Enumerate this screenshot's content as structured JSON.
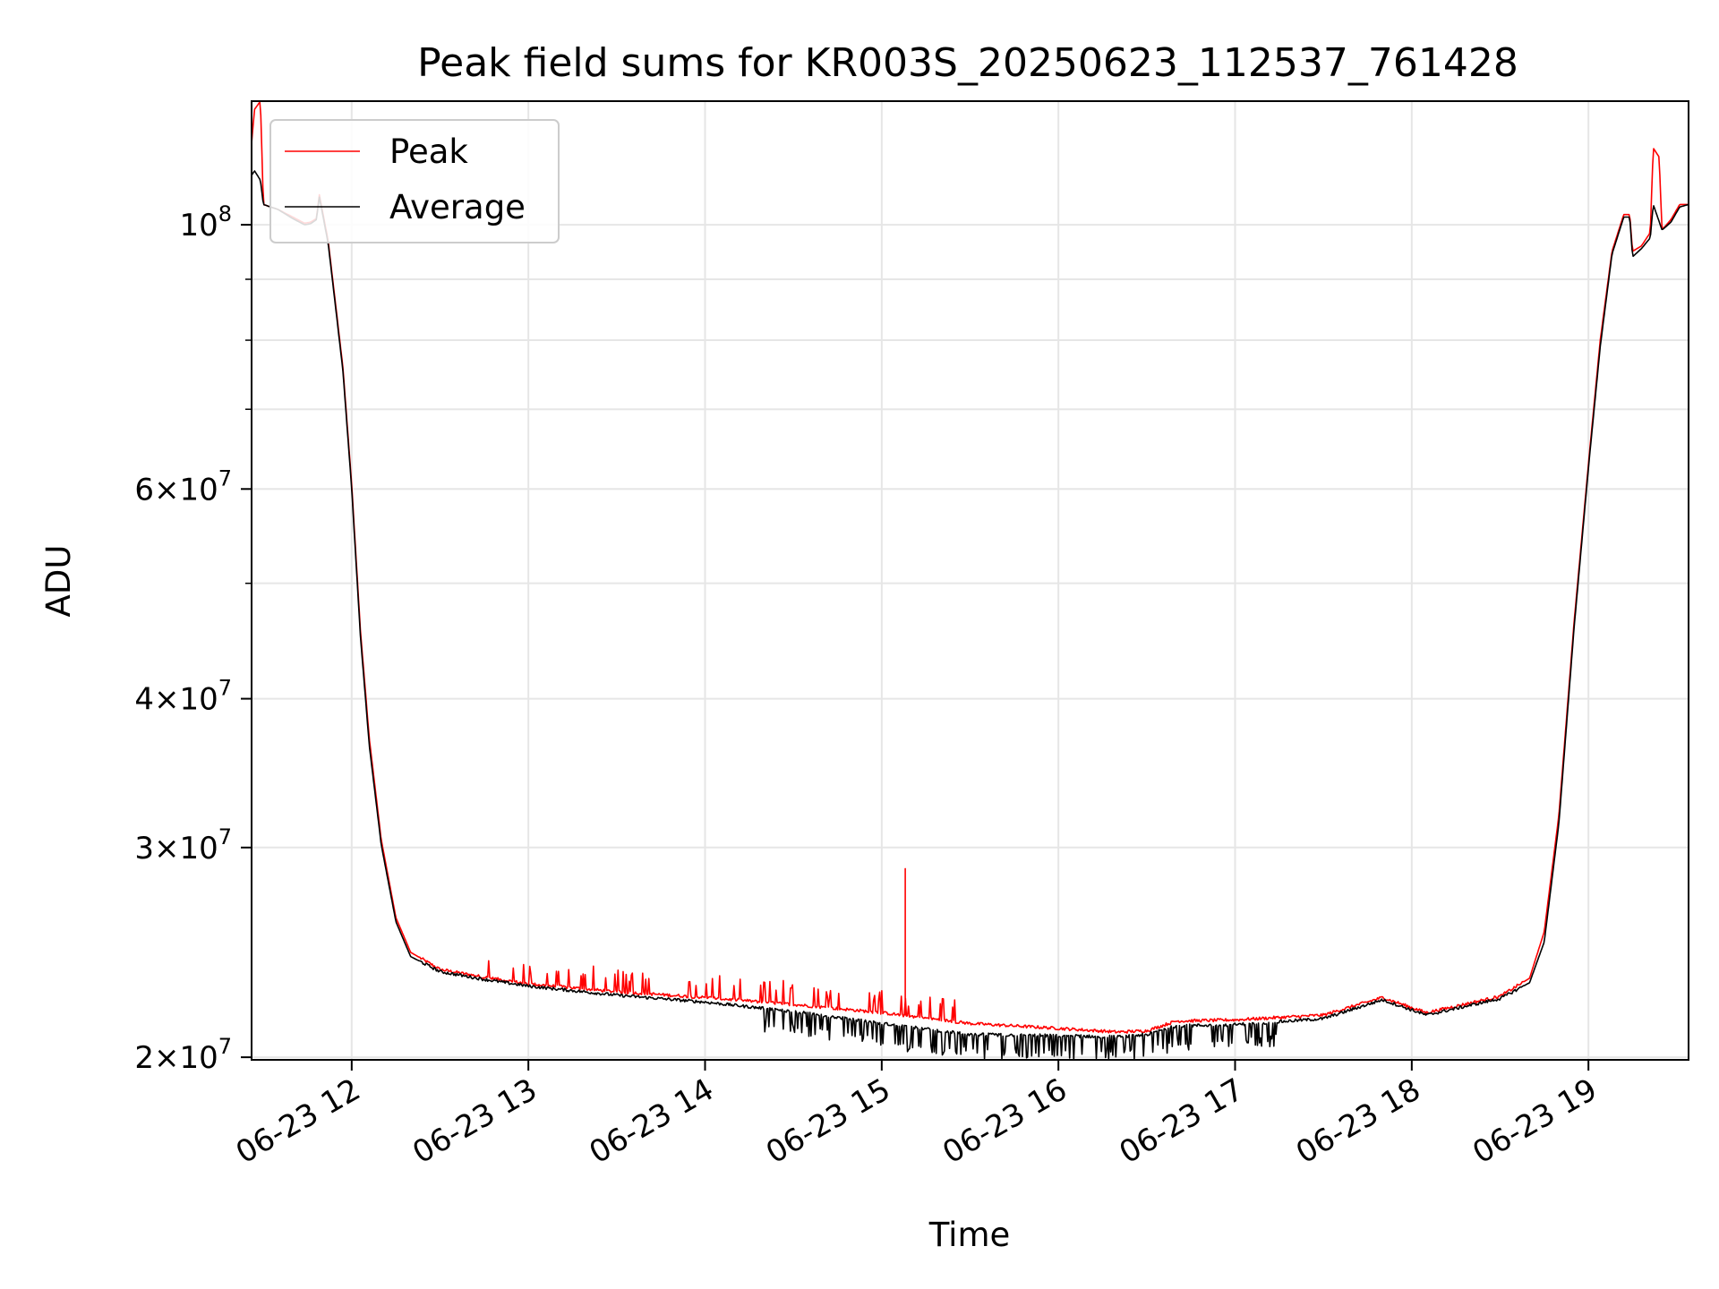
{
  "chart_data": {
    "type": "line",
    "title": "Peak field sums for KR003S_20250623_112537_761428",
    "xlabel": "Time",
    "ylabel": "ADU",
    "yscale": "log",
    "xlim": [
      "2025-06-23 11:26",
      "2025-06-23 19:34"
    ],
    "ylim": [
      19900000,
      127000000
    ],
    "grid": true,
    "legend": {
      "placement": "upper-left"
    },
    "x_ticks": [
      {
        "value": "2025-06-23 12:00",
        "label": "06-23 12"
      },
      {
        "value": "2025-06-23 13:00",
        "label": "06-23 13"
      },
      {
        "value": "2025-06-23 14:00",
        "label": "06-23 14"
      },
      {
        "value": "2025-06-23 15:00",
        "label": "06-23 15"
      },
      {
        "value": "2025-06-23 16:00",
        "label": "06-23 16"
      },
      {
        "value": "2025-06-23 17:00",
        "label": "06-23 17"
      },
      {
        "value": "2025-06-23 18:00",
        "label": "06-23 18"
      },
      {
        "value": "2025-06-23 19:00",
        "label": "06-23 19"
      }
    ],
    "y_ticks": [
      {
        "value": 20000000,
        "mantissa": "2",
        "exponent": "7"
      },
      {
        "value": 30000000,
        "mantissa": "3",
        "exponent": "7"
      },
      {
        "value": 40000000,
        "mantissa": "4",
        "exponent": "7"
      },
      {
        "value": 60000000,
        "mantissa": "6",
        "exponent": "7"
      },
      {
        "value": 100000000,
        "mantissa": "",
        "exponent": "8"
      }
    ],
    "y_minor_ticks": [
      50000000,
      70000000,
      80000000,
      90000000
    ],
    "series": [
      {
        "name": "Peak",
        "color": "#ff0000",
        "noise_spikes": true,
        "points": [
          [
            "2025-06-23 11:26",
            117000000
          ],
          [
            "2025-06-23 11:27",
            125000000
          ],
          [
            "2025-06-23 11:29",
            127000000
          ],
          [
            "2025-06-23 11:30",
            104000000
          ],
          [
            "2025-06-23 11:35",
            103000000
          ],
          [
            "2025-06-23 11:40",
            101500000
          ],
          [
            "2025-06-23 11:44",
            100300000
          ],
          [
            "2025-06-23 11:46",
            100500000
          ],
          [
            "2025-06-23 11:48",
            101200000
          ],
          [
            "2025-06-23 11:49",
            106000000
          ],
          [
            "2025-06-23 11:52",
            97000000
          ],
          [
            "2025-06-23 11:57",
            76000000
          ],
          [
            "2025-06-23 12:00",
            60500000
          ],
          [
            "2025-06-23 12:03",
            45500000
          ],
          [
            "2025-06-23 12:06",
            37000000
          ],
          [
            "2025-06-23 12:10",
            30500000
          ],
          [
            "2025-06-23 12:15",
            26200000
          ],
          [
            "2025-06-23 12:20",
            24500000
          ],
          [
            "2025-06-23 12:30",
            23700000
          ],
          [
            "2025-06-23 12:45",
            23350000
          ],
          [
            "2025-06-23 13:00",
            23050000
          ],
          [
            "2025-06-23 13:30",
            22700000
          ],
          [
            "2025-06-23 14:00",
            22450000
          ],
          [
            "2025-06-23 14:30",
            22150000
          ],
          [
            "2025-06-23 15:00",
            21800000
          ],
          [
            "2025-06-23 15:30",
            21350000
          ],
          [
            "2025-06-23 16:00",
            21150000
          ],
          [
            "2025-06-23 16:20",
            21000000
          ],
          [
            "2025-06-23 16:30",
            21050000
          ],
          [
            "2025-06-23 16:40",
            21450000
          ],
          [
            "2025-06-23 17:00",
            21500000
          ],
          [
            "2025-06-23 17:30",
            21700000
          ],
          [
            "2025-06-23 17:50",
            22450000
          ],
          [
            "2025-06-23 18:05",
            21800000
          ],
          [
            "2025-06-23 18:30",
            22500000
          ],
          [
            "2025-06-23 18:40",
            23300000
          ],
          [
            "2025-06-23 18:45",
            25500000
          ],
          [
            "2025-06-23 18:50",
            32000000
          ],
          [
            "2025-06-23 18:55",
            46000000
          ],
          [
            "2025-06-23 19:00",
            63000000
          ],
          [
            "2025-06-23 19:04",
            80000000
          ],
          [
            "2025-06-23 19:08",
            95000000
          ],
          [
            "2025-06-23 19:12",
            102000000
          ],
          [
            "2025-06-23 19:14",
            102000000
          ],
          [
            "2025-06-23 19:15",
            95000000
          ],
          [
            "2025-06-23 19:18",
            96000000
          ],
          [
            "2025-06-23 19:21",
            98500000
          ],
          [
            "2025-06-23 19:22",
            116000000
          ],
          [
            "2025-06-23 19:24",
            114000000
          ],
          [
            "2025-06-23 19:25",
            99000000
          ],
          [
            "2025-06-23 19:28",
            101000000
          ],
          [
            "2025-06-23 19:31",
            104000000
          ],
          [
            "2025-06-23 19:34",
            104000000
          ]
        ],
        "spikes": [
          [
            "2025-06-23 15:08",
            28800000
          ]
        ]
      },
      {
        "name": "Average",
        "color": "#000000",
        "noise_spikes": true,
        "points": [
          [
            "2025-06-23 11:26",
            110000000
          ],
          [
            "2025-06-23 11:27",
            111000000
          ],
          [
            "2025-06-23 11:29",
            109000000
          ],
          [
            "2025-06-23 11:30",
            104000000
          ],
          [
            "2025-06-23 11:35",
            103000000
          ],
          [
            "2025-06-23 11:40",
            101200000
          ],
          [
            "2025-06-23 11:44",
            100000000
          ],
          [
            "2025-06-23 11:46",
            100200000
          ],
          [
            "2025-06-23 11:48",
            101000000
          ],
          [
            "2025-06-23 11:49",
            105500000
          ],
          [
            "2025-06-23 11:52",
            96500000
          ],
          [
            "2025-06-23 11:57",
            75500000
          ],
          [
            "2025-06-23 12:00",
            60000000
          ],
          [
            "2025-06-23 12:03",
            45000000
          ],
          [
            "2025-06-23 12:06",
            36500000
          ],
          [
            "2025-06-23 12:10",
            30200000
          ],
          [
            "2025-06-23 12:15",
            26000000
          ],
          [
            "2025-06-23 12:20",
            24300000
          ],
          [
            "2025-06-23 12:30",
            23600000
          ],
          [
            "2025-06-23 12:45",
            23250000
          ],
          [
            "2025-06-23 13:00",
            22950000
          ],
          [
            "2025-06-23 13:30",
            22550000
          ],
          [
            "2025-06-23 14:00",
            22250000
          ],
          [
            "2025-06-23 14:30",
            21850000
          ],
          [
            "2025-06-23 15:00",
            21350000
          ],
          [
            "2025-06-23 15:30",
            20900000
          ],
          [
            "2025-06-23 16:00",
            20850000
          ],
          [
            "2025-06-23 16:20",
            20800000
          ],
          [
            "2025-06-23 16:30",
            20900000
          ],
          [
            "2025-06-23 16:40",
            21250000
          ],
          [
            "2025-06-23 17:00",
            21300000
          ],
          [
            "2025-06-23 17:30",
            21550000
          ],
          [
            "2025-06-23 17:50",
            22350000
          ],
          [
            "2025-06-23 18:05",
            21700000
          ],
          [
            "2025-06-23 18:30",
            22400000
          ],
          [
            "2025-06-23 18:40",
            23100000
          ],
          [
            "2025-06-23 18:45",
            25000000
          ],
          [
            "2025-06-23 18:50",
            31500000
          ],
          [
            "2025-06-23 18:55",
            45500000
          ],
          [
            "2025-06-23 19:00",
            62500000
          ],
          [
            "2025-06-23 19:04",
            79000000
          ],
          [
            "2025-06-23 19:08",
            94500000
          ],
          [
            "2025-06-23 19:12",
            101500000
          ],
          [
            "2025-06-23 19:14",
            101500000
          ],
          [
            "2025-06-23 19:15",
            94000000
          ],
          [
            "2025-06-23 19:18",
            95500000
          ],
          [
            "2025-06-23 19:21",
            97500000
          ],
          [
            "2025-06-23 19:22",
            104000000
          ],
          [
            "2025-06-23 19:25",
            99000000
          ],
          [
            "2025-06-23 19:28",
            100500000
          ],
          [
            "2025-06-23 19:31",
            103500000
          ],
          [
            "2025-06-23 19:34",
            104000000
          ]
        ],
        "spikes": []
      }
    ]
  }
}
